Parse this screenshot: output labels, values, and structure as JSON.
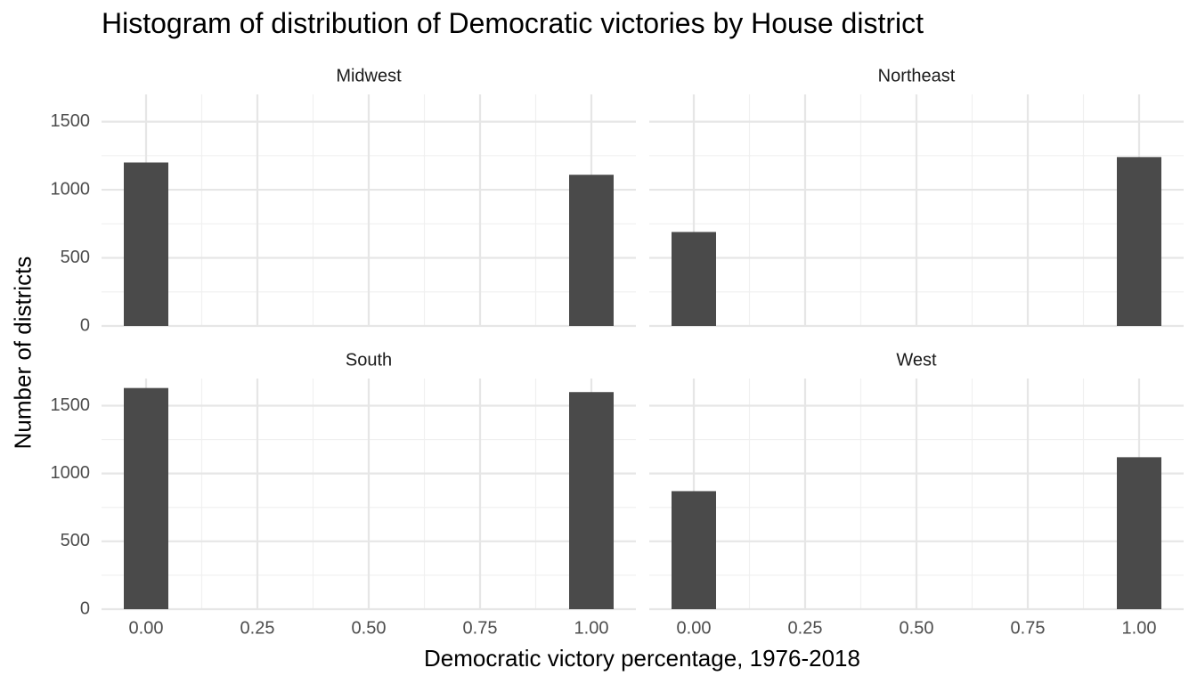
{
  "chart_data": {
    "type": "bar",
    "title": "Histogram of distribution of Democratic victories by House district",
    "xlabel": "Democratic victory percentage, 1976-2018",
    "ylabel": "Number of districts",
    "xlim": [
      -0.1,
      1.1
    ],
    "ylim": [
      0,
      1700
    ],
    "x_ticks": [
      0.0,
      0.25,
      0.5,
      0.75,
      1.0
    ],
    "x_tick_labels": [
      "0.00",
      "0.25",
      "0.50",
      "0.75",
      "1.00"
    ],
    "y_ticks": [
      0,
      500,
      1000,
      1500
    ],
    "y_tick_labels": [
      "0",
      "500",
      "1000",
      "1500"
    ],
    "bin_width": 0.1,
    "grid": true,
    "bar_color": "#4a4a4a",
    "facets": [
      {
        "name": "Midwest",
        "bins": [
          {
            "x": 0.0,
            "count": 1200
          },
          {
            "x": 1.0,
            "count": 1110
          }
        ]
      },
      {
        "name": "Northeast",
        "bins": [
          {
            "x": 0.0,
            "count": 690
          },
          {
            "x": 1.0,
            "count": 1240
          }
        ]
      },
      {
        "name": "South",
        "bins": [
          {
            "x": 0.0,
            "count": 1630
          },
          {
            "x": 1.0,
            "count": 1600
          }
        ]
      },
      {
        "name": "West",
        "bins": [
          {
            "x": 0.0,
            "count": 870
          },
          {
            "x": 1.0,
            "count": 1120
          }
        ]
      }
    ]
  }
}
